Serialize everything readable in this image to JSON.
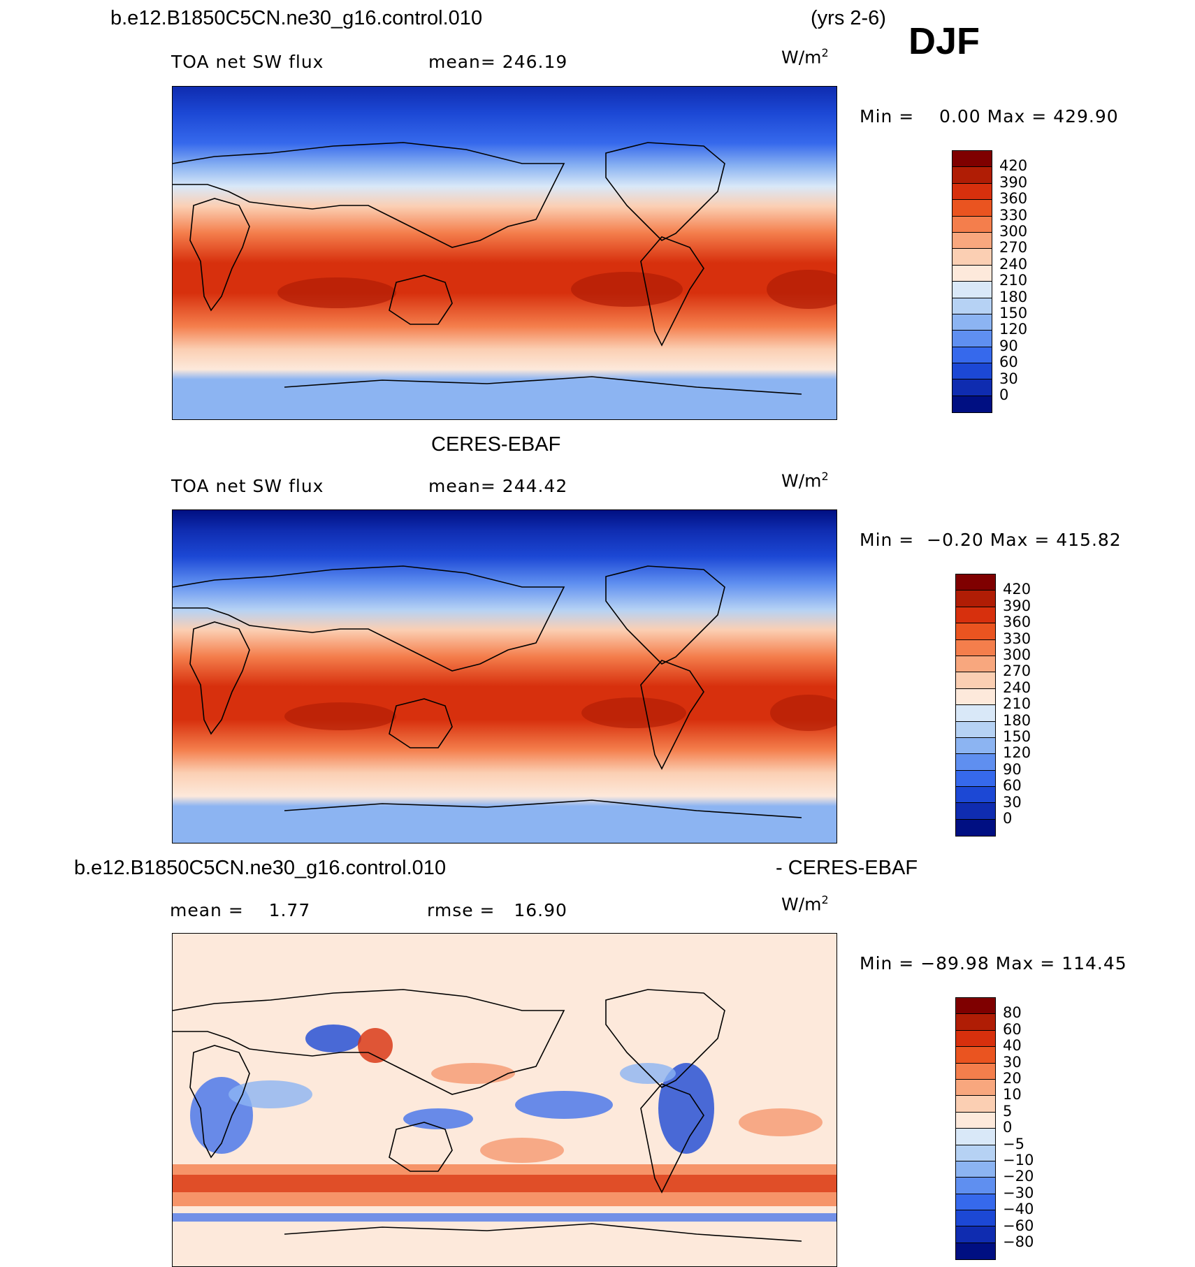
{
  "header": {
    "case_name": "b.e12.B1850C5CN.ne30_g16.control.010",
    "years": "(yrs 2-6)",
    "season": "DJF"
  },
  "panel1": {
    "variable": "TOA net SW flux",
    "mean_text": "mean= 246.19",
    "units": "W/m",
    "units_exp": "2",
    "minmax": "Min =    0.00 Max = 429.90",
    "levels": [
      "420",
      "390",
      "360",
      "330",
      "300",
      "270",
      "240",
      "210",
      "180",
      "150",
      "120",
      "90",
      "60",
      "30",
      "0"
    ]
  },
  "panel2": {
    "dataset": "CERES-EBAF",
    "variable": "TOA net SW flux",
    "mean_text": "mean= 244.42",
    "units": "W/m",
    "units_exp": "2",
    "minmax": "Min =  −0.20 Max = 415.82",
    "levels": [
      "420",
      "390",
      "360",
      "330",
      "300",
      "270",
      "240",
      "210",
      "180",
      "150",
      "120",
      "90",
      "60",
      "30",
      "0"
    ]
  },
  "panel3": {
    "case_name": "b.e12.B1850C5CN.ne30_g16.control.010",
    "minus_dataset": "- CERES-EBAF",
    "mean_text": "mean =    1.77",
    "rmse_text": "rmse =   16.90",
    "units": "W/m",
    "units_exp": "2",
    "minmax": "Min = −89.98 Max = 114.45",
    "levels": [
      "80",
      "60",
      "40",
      "30",
      "20",
      "10",
      "5",
      "0",
      "−5",
      "−10",
      "−20",
      "−30",
      "−40",
      "−60",
      "−80"
    ]
  },
  "colors": {
    "abs_scale": [
      "#7f0000",
      "#b01d05",
      "#d7300d",
      "#ea5420",
      "#f47e4c",
      "#f8a77e",
      "#fbcfb3",
      "#fde9db",
      "#d9e8f8",
      "#b6d2f4",
      "#8cb4f2",
      "#5f8ff0",
      "#3669ec",
      "#1c48d5",
      "#0f2cb0",
      "#000f82"
    ],
    "diff_scale": [
      "#7f0000",
      "#b01d05",
      "#d7300d",
      "#ea5420",
      "#f47e4c",
      "#f8a77e",
      "#fbcfb3",
      "#fde9db",
      "#d9e8f8",
      "#b6d2f4",
      "#8cb4f2",
      "#5f8ff0",
      "#3669ec",
      "#1c48d5",
      "#0f2cb0",
      "#000f82"
    ]
  }
}
